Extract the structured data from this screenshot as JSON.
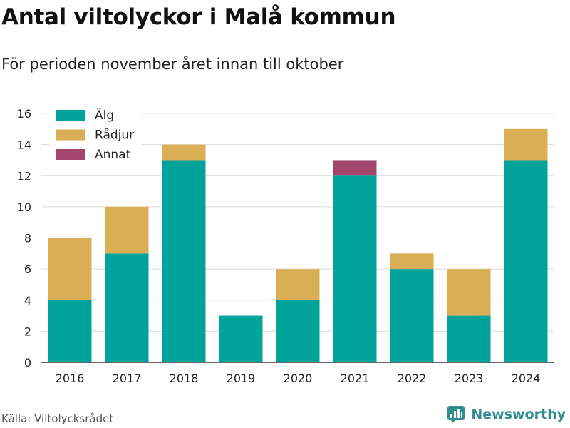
{
  "title": "Antal viltolyckor i Malå kommun",
  "subtitle": "För perioden november året innan till oktober",
  "source": "Källa: Viltolycksrådet",
  "brand": "Newsworthy",
  "brand_icon": "newsworthy-logo-icon",
  "colors": {
    "Älg": "#00a39a",
    "Rådjur": "#d9ae55",
    "Annat": "#a3466c",
    "brand": "#2f8c90"
  },
  "chart_data": {
    "type": "bar",
    "stacked": true,
    "categories": [
      "2016",
      "2017",
      "2018",
      "2019",
      "2020",
      "2021",
      "2022",
      "2023",
      "2024"
    ],
    "series": [
      {
        "name": "Älg",
        "values": [
          4,
          7,
          13,
          3,
          4,
          12,
          6,
          3,
          13
        ]
      },
      {
        "name": "Rådjur",
        "values": [
          4,
          3,
          1,
          0,
          2,
          0,
          1,
          3,
          2
        ]
      },
      {
        "name": "Annat",
        "values": [
          0,
          0,
          0,
          0,
          0,
          1,
          0,
          0,
          0
        ]
      }
    ],
    "ylim": [
      0,
      16
    ],
    "yticks": [
      0,
      2,
      4,
      6,
      8,
      10,
      12,
      14,
      16
    ],
    "grid": true,
    "legend_position": "top-left"
  }
}
